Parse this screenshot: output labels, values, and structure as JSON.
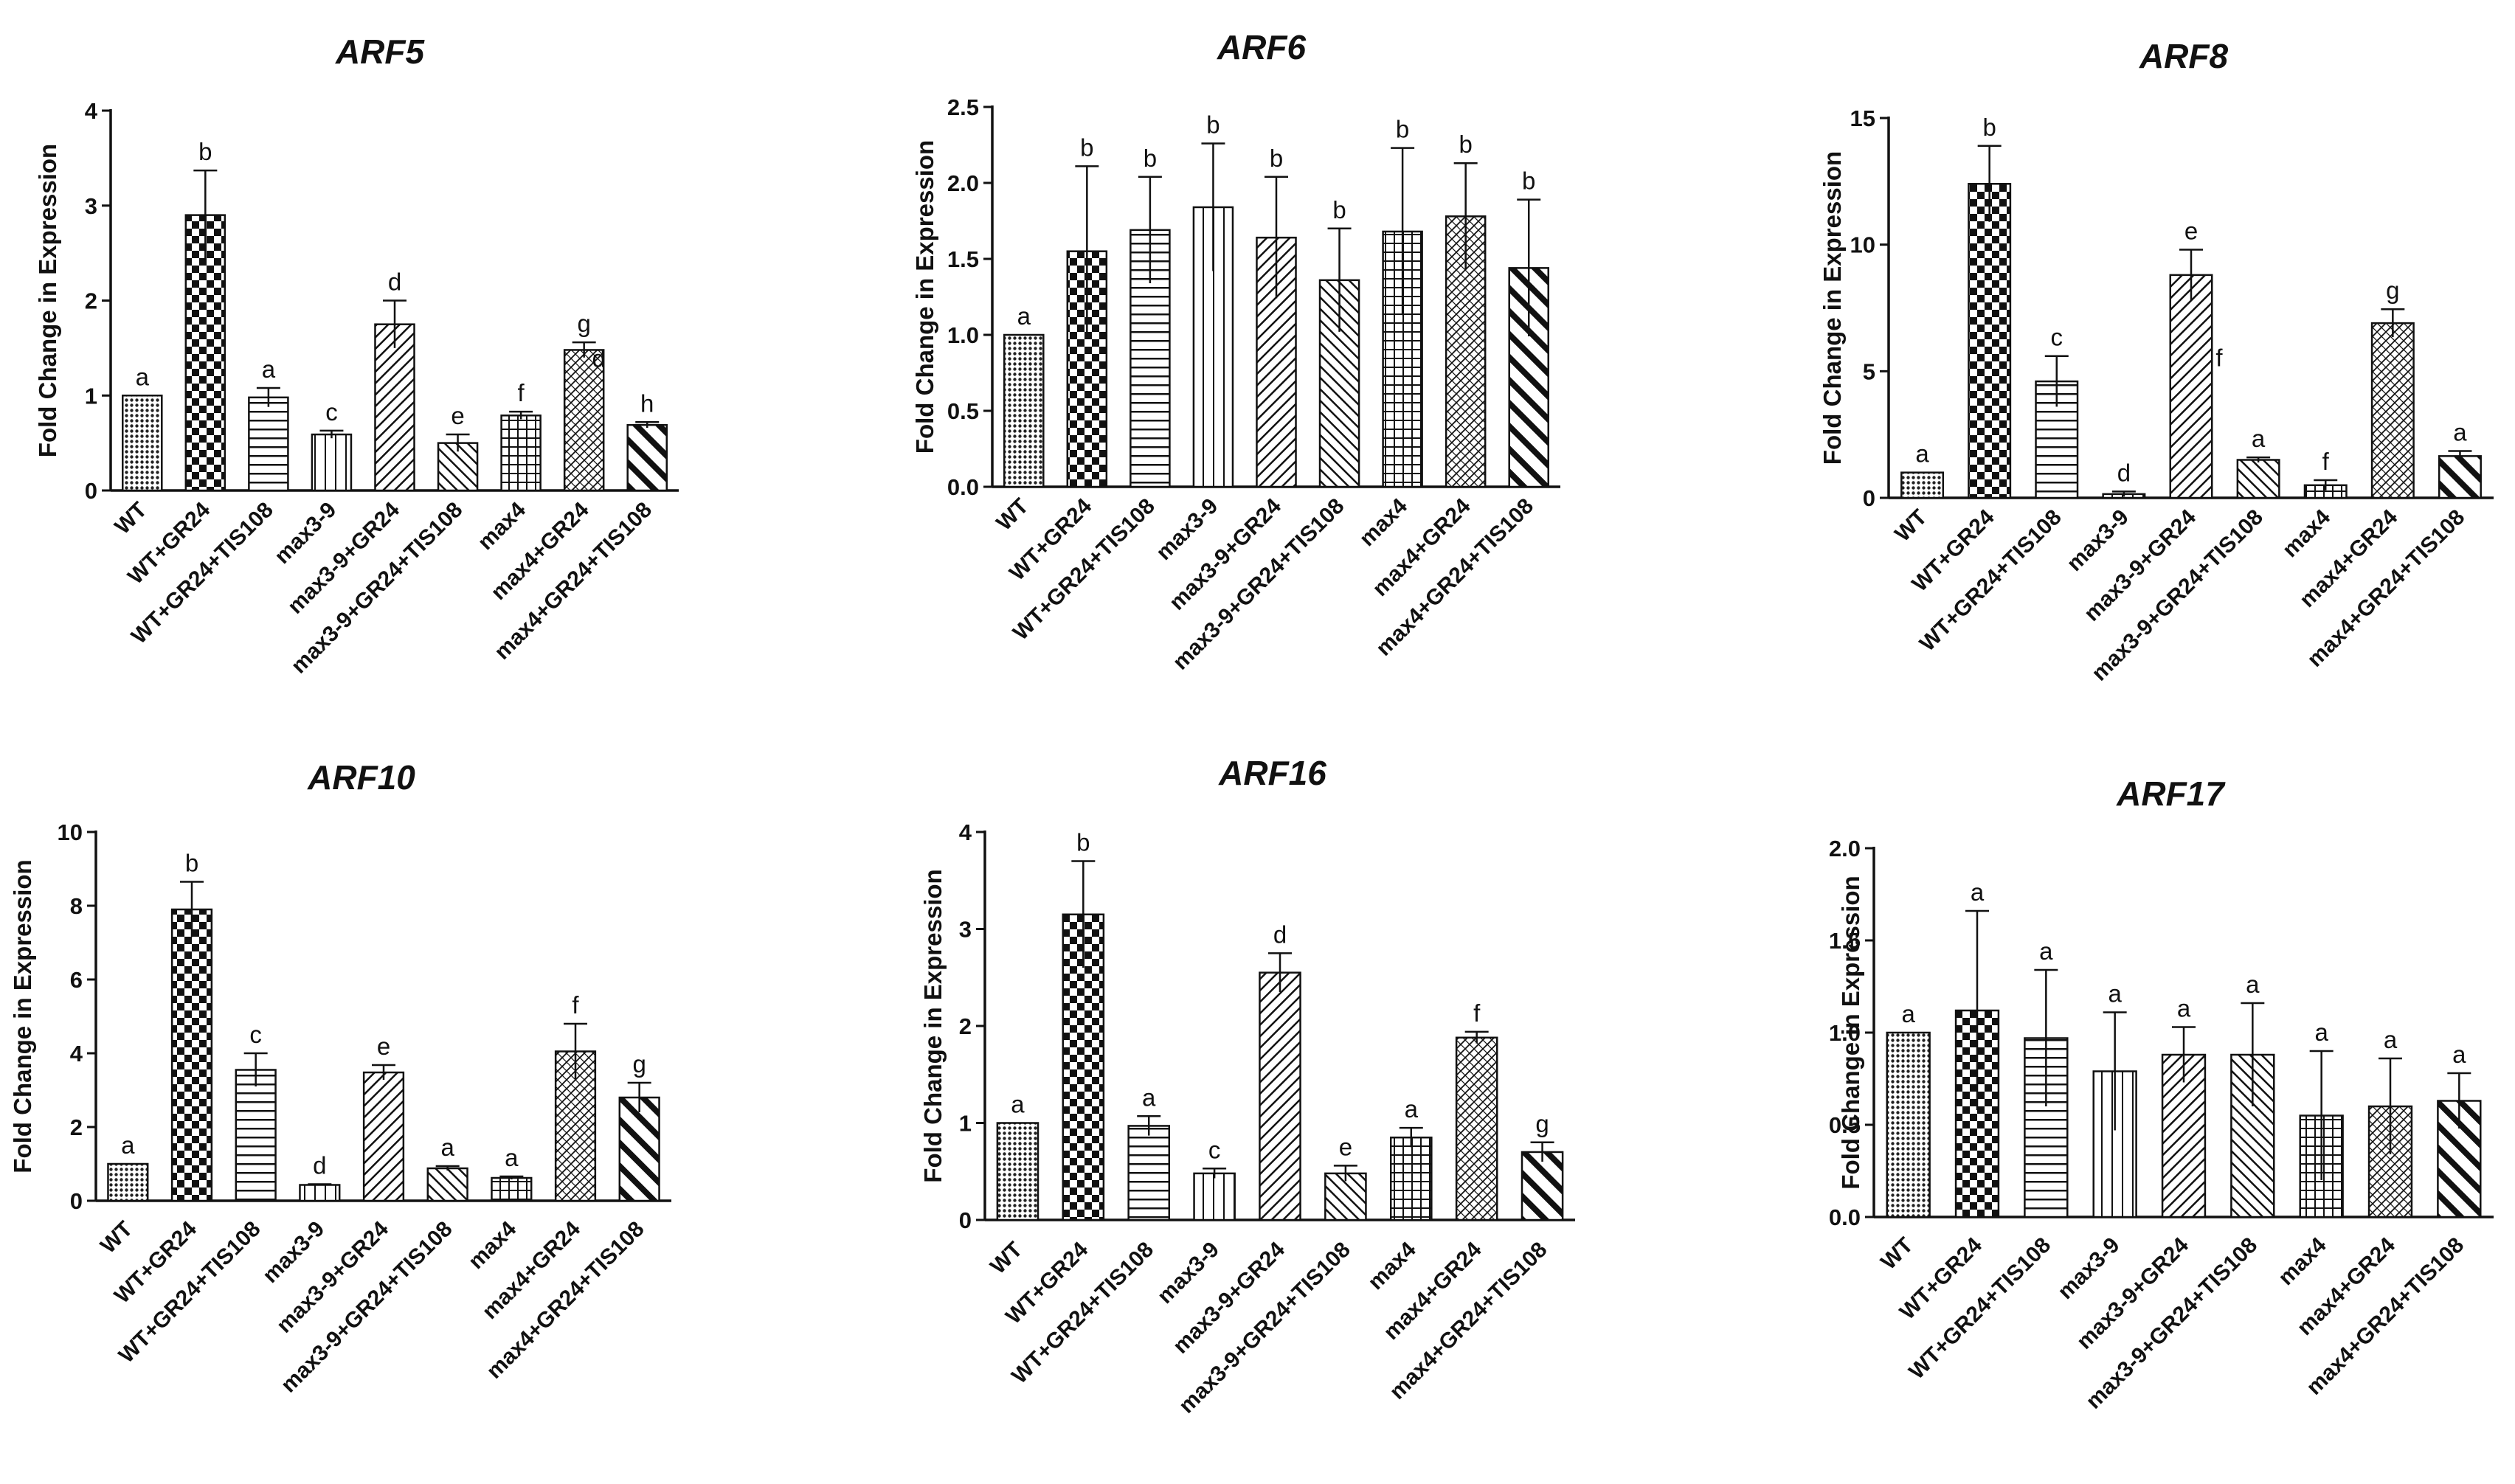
{
  "chart_data": [
    {
      "type": "bar",
      "title": "ARF5",
      "ylabel": "Fold Change in Expression",
      "xlabel": "",
      "ylim": [
        0,
        4
      ],
      "yticks": [
        "0",
        "1",
        "2",
        "3",
        "4"
      ],
      "categories": [
        "WT",
        "WT+GR24",
        "WT+GR24+TIS108",
        "max3-9",
        "max3-9+GR24",
        "max3-9+GR24+TIS108",
        "max4",
        "max4+GR24",
        "max4+GR24+TIS108"
      ],
      "values": [
        1.0,
        2.9,
        0.98,
        0.59,
        1.75,
        0.5,
        0.79,
        1.48,
        0.69
      ],
      "errors": [
        0.0,
        0.47,
        0.1,
        0.04,
        0.25,
        0.09,
        0.04,
        0.08,
        0.03
      ],
      "sig_letters": [
        "a",
        "b",
        "a",
        "c",
        "d",
        "e",
        "f",
        "g",
        "h"
      ],
      "extra_annotations": [
        "d"
      ]
    },
    {
      "type": "bar",
      "title": "ARF6",
      "ylabel": "Fold Change in Expression",
      "xlabel": "",
      "ylim": [
        0,
        2.5
      ],
      "yticks": [
        "0.0",
        "0.5",
        "1.0",
        "1.5",
        "2.0",
        "2.5"
      ],
      "categories": [
        "WT",
        "WT+GR24",
        "WT+GR24+TIS108",
        "max3-9",
        "max3-9+GR24",
        "max3-9+GR24+TIS108",
        "max4",
        "max4+GR24",
        "max4+GR24+TIS108"
      ],
      "values": [
        1.0,
        1.55,
        1.69,
        1.84,
        1.64,
        1.36,
        1.68,
        1.78,
        1.44
      ],
      "errors": [
        0.0,
        0.56,
        0.35,
        0.42,
        0.4,
        0.34,
        0.55,
        0.35,
        0.45
      ],
      "sig_letters": [
        "a",
        "b",
        "b",
        "b",
        "b",
        "b",
        "b",
        "b",
        "b"
      ],
      "extra_annotations": []
    },
    {
      "type": "bar",
      "title": "ARF8",
      "ylabel": "Fold Change in Expression",
      "xlabel": "",
      "ylim": [
        0,
        15
      ],
      "yticks": [
        "0",
        "5",
        "10",
        "15"
      ],
      "categories": [
        "WT",
        "WT+GR24",
        "WT+GR24+TIS108",
        "max3-9",
        "max3-9+GR24",
        "max3-9+GR24+TIS108",
        "max4",
        "max4+GR24",
        "max4+GR24+TIS108"
      ],
      "values": [
        1.0,
        12.4,
        4.6,
        0.15,
        8.8,
        1.5,
        0.5,
        6.9,
        1.65
      ],
      "errors": [
        0.0,
        1.5,
        1.0,
        0.1,
        1.0,
        0.1,
        0.2,
        0.55,
        0.2
      ],
      "sig_letters": [
        "a",
        "b",
        "c",
        "d",
        "e",
        "a",
        "f",
        "g",
        "a"
      ],
      "extra_annotations": [
        "f"
      ]
    },
    {
      "type": "bar",
      "title": "ARF10",
      "ylabel": "Fold Change in Expression",
      "xlabel": "",
      "ylim": [
        0,
        10
      ],
      "yticks": [
        "0",
        "2",
        "4",
        "6",
        "8",
        "10"
      ],
      "categories": [
        "WT",
        "WT+GR24",
        "WT+GR24+TIS108",
        "max3-9",
        "max3-9+GR24",
        "max3-9+GR24+TIS108",
        "max4",
        "max4+GR24",
        "max4+GR24+TIS108"
      ],
      "values": [
        1.0,
        7.9,
        3.55,
        0.43,
        3.48,
        0.88,
        0.62,
        4.05,
        2.8
      ],
      "errors": [
        0.0,
        0.75,
        0.45,
        0.02,
        0.2,
        0.06,
        0.04,
        0.75,
        0.4
      ],
      "sig_letters": [
        "a",
        "b",
        "c",
        "d",
        "e",
        "a",
        "a",
        "f",
        "g"
      ],
      "extra_annotations": []
    },
    {
      "type": "bar",
      "title": "ARF16",
      "ylabel": "Fold Change in Expression",
      "xlabel": "",
      "ylim": [
        0,
        4
      ],
      "yticks": [
        "0",
        "1",
        "2",
        "3",
        "4"
      ],
      "categories": [
        "WT",
        "WT+GR24",
        "WT+GR24+TIS108",
        "max3-9",
        "max3-9+GR24",
        "max3-9+GR24+TIS108",
        "max4",
        "max4+GR24",
        "max4+GR24+TIS108"
      ],
      "values": [
        1.0,
        3.15,
        0.97,
        0.48,
        2.55,
        0.48,
        0.85,
        1.88,
        0.7
      ],
      "errors": [
        0.0,
        0.55,
        0.1,
        0.05,
        0.2,
        0.08,
        0.1,
        0.06,
        0.1
      ],
      "sig_letters": [
        "a",
        "b",
        "a",
        "c",
        "d",
        "e",
        "a",
        "f",
        "g"
      ],
      "extra_annotations": []
    },
    {
      "type": "bar",
      "title": "ARF17",
      "ylabel": "Fold Change in Expression",
      "xlabel": "",
      "ylim": [
        0,
        2.0
      ],
      "yticks": [
        "0.0",
        "0.5",
        "1.0",
        "1.5",
        "2.0"
      ],
      "categories": [
        "WT",
        "WT+GR24",
        "WT+GR24+TIS108",
        "max3-9",
        "max3-9+GR24",
        "max3-9+GR24+TIS108",
        "max4",
        "max4+GR24",
        "max4+GR24+TIS108"
      ],
      "values": [
        1.0,
        1.12,
        0.97,
        0.79,
        0.88,
        0.88,
        0.55,
        0.6,
        0.63
      ],
      "errors": [
        0.0,
        0.54,
        0.37,
        0.32,
        0.15,
        0.28,
        0.35,
        0.26,
        0.15
      ],
      "sig_letters": [
        "a",
        "a",
        "a",
        "a",
        "a",
        "a",
        "a",
        "a",
        "a"
      ],
      "extra_annotations": []
    }
  ],
  "legend_patterns": [
    "dots",
    "checker",
    "hlines",
    "vlines",
    "diag-right",
    "diag-left",
    "grid",
    "diag-cross",
    "diag-thick"
  ]
}
